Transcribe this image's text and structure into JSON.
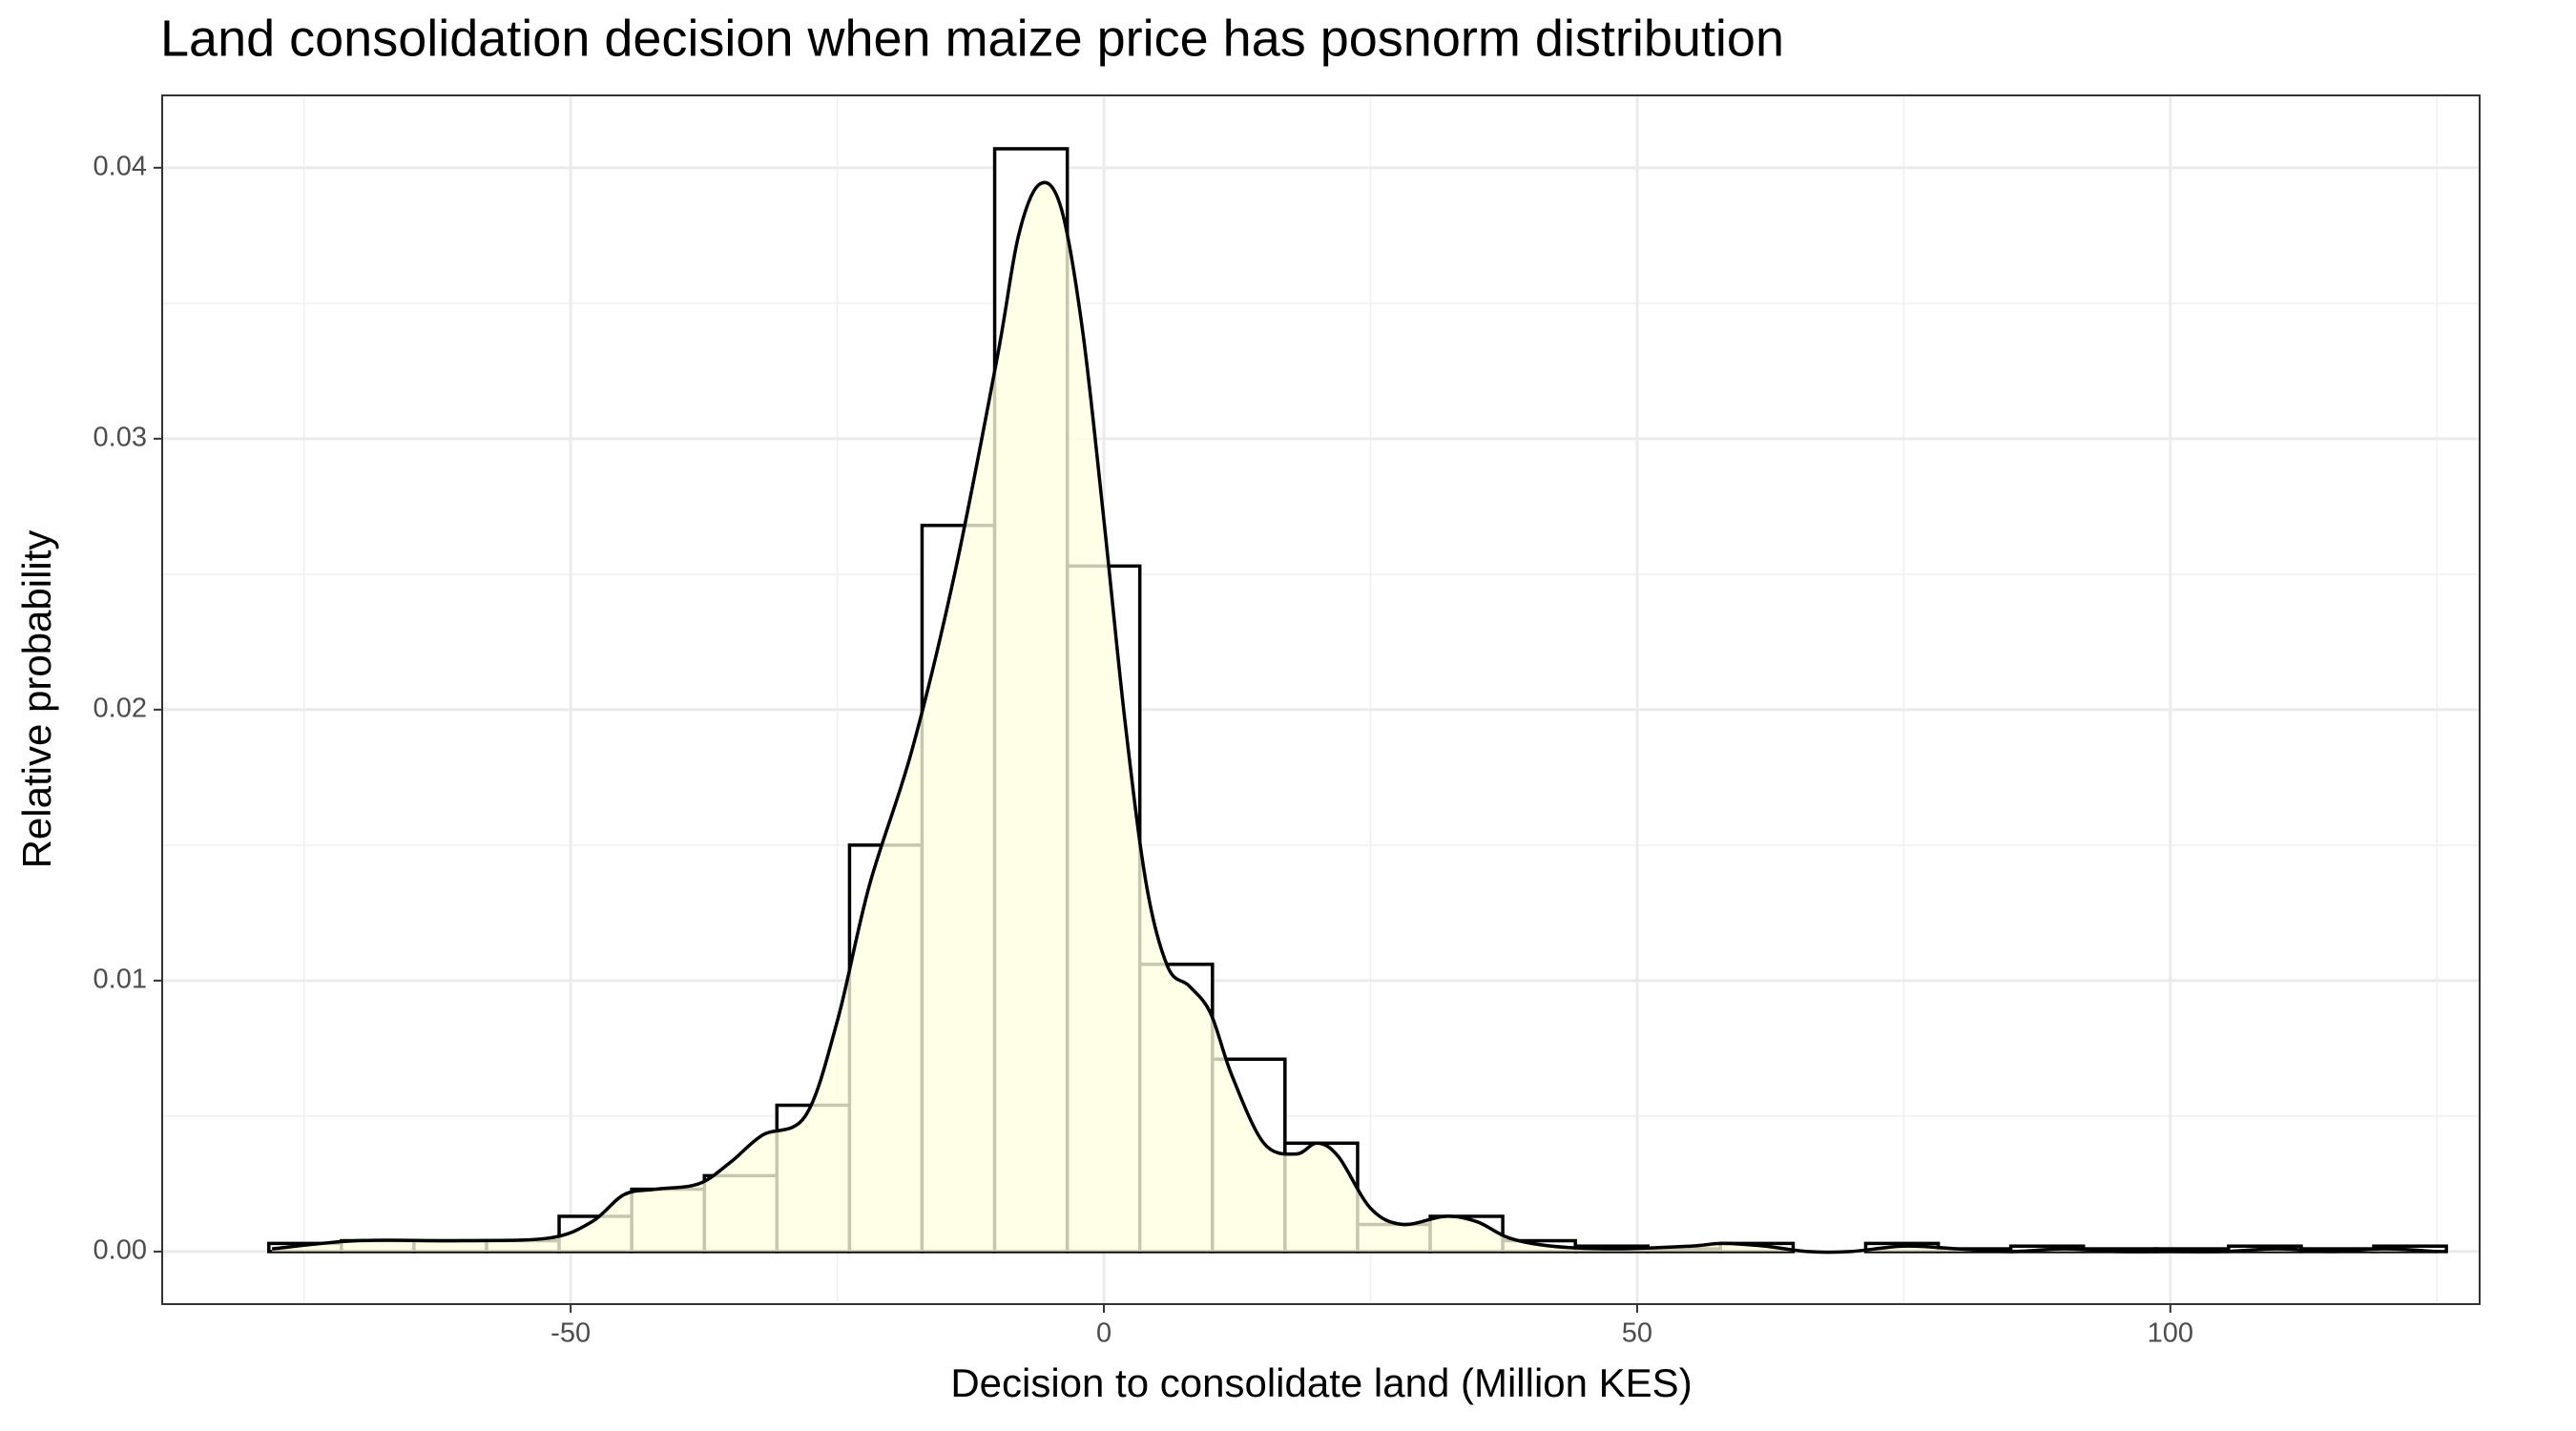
{
  "chart_data": {
    "type": "histogram",
    "title": "Land consolidation decision when maize price has posnorm distribution",
    "x_label": "Decision to consolidate land (Million KES)",
    "y_label": "Relative probability",
    "bins": [
      -78.3,
      -71.49,
      -64.69,
      -57.88,
      -51.08,
      -44.27,
      -37.46,
      -30.66,
      -23.85,
      -17.05,
      -10.24,
      -3.43,
      3.37,
      10.18,
      16.98,
      23.79,
      30.6,
      37.4,
      44.21,
      51.01,
      57.82,
      64.63,
      71.43,
      78.24,
      85.04,
      91.85,
      98.66,
      105.46,
      112.27,
      119.07,
      125.88
    ],
    "values": [
      0.0003,
      0.0004,
      0.0004,
      0.0004,
      0.0013,
      0.0023,
      0.0028,
      0.0054,
      0.015,
      0.0268,
      0.0407,
      0.0253,
      0.0106,
      0.0071,
      0.004,
      0.001,
      0.0013,
      0.0004,
      0.0002,
      0.0001,
      0.0003,
      0,
      0.0003,
      0.0001,
      0.0002,
      0.0001,
      0.0001,
      0.0002,
      0.0001,
      0.0002
    ],
    "density": {
      "x": [
        -78,
        -70,
        -60,
        -52,
        -48,
        -45,
        -42,
        -38,
        -35,
        -32,
        -28,
        -25,
        -22,
        -18,
        -14,
        -10,
        -8,
        -6,
        -4,
        -2,
        0,
        2,
        4,
        6,
        8,
        10,
        12,
        15,
        18,
        20,
        22,
        25,
        28,
        32,
        35,
        38,
        42,
        48,
        55,
        58,
        62,
        66,
        70,
        75,
        80,
        85,
        90,
        95,
        100,
        105,
        110,
        115,
        120,
        125
      ],
      "y": [
        0.0001,
        0.0004,
        0.0004,
        0.0005,
        0.0011,
        0.0021,
        0.0023,
        0.0025,
        0.0033,
        0.0043,
        0.005,
        0.0085,
        0.0135,
        0.0185,
        0.025,
        0.033,
        0.0375,
        0.0394,
        0.0385,
        0.034,
        0.027,
        0.0195,
        0.0135,
        0.0105,
        0.0098,
        0.0088,
        0.0065,
        0.004,
        0.0036,
        0.004,
        0.0035,
        0.0016,
        0.001,
        0.0013,
        0.0011,
        0.0005,
        0.0002,
        0.0001,
        0.0002,
        0.0003,
        0.0002,
        0,
        0,
        0.0002,
        0.0001,
        0,
        0.0001,
        0,
        0,
        0,
        0.0001,
        0,
        0.0001,
        0
      ]
    },
    "fill_color": "#ffffe0",
    "edge_color": "#000000",
    "xlim": [
      -88.3,
      129.0
    ],
    "ylim": [
      -0.00194,
      0.04267
    ],
    "xticks": [
      -50,
      0,
      50,
      100
    ],
    "yticks": [
      {
        "value": 0,
        "label": "0.00"
      },
      0.01,
      0.02,
      0.03,
      0.04
    ],
    "grid": true,
    "minor_grid": true
  }
}
